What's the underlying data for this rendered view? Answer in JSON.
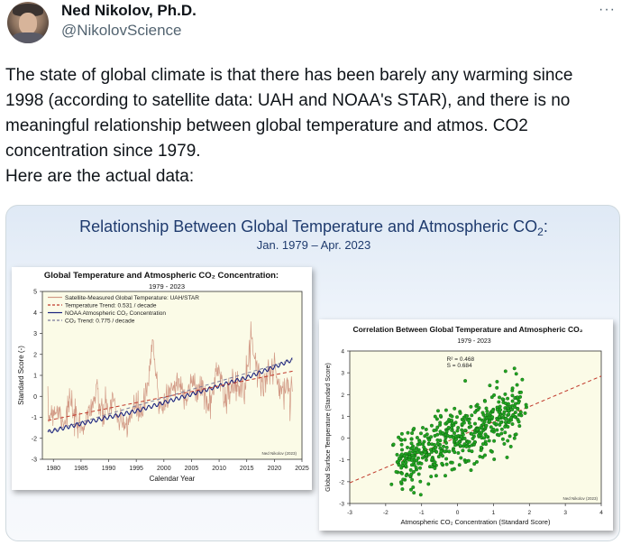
{
  "author": {
    "name": "Ned Nikolov, Ph.D.",
    "handle": "@NikolovScience",
    "more": "···"
  },
  "tweet": {
    "lines": [
      "The state of global climate is that there has been barely any warming since 1998 (according to satellite data: UAH and NOAA's STAR), and there is no meaningful relationship between global temperature and atmos. CO2 concentration since 1979.",
      "Here are the actual data:"
    ]
  },
  "figure": {
    "title_main": "Relationship Between Global Temperature and Atmospheric CO",
    "title_sub2": "2",
    "title_colon": ":",
    "subtitle": "Jan. 1979 – Apr. 2023"
  },
  "chart_data": [
    {
      "type": "line",
      "title": "Global Temperature and Atmospheric CO₂ Concentration:",
      "subtitle": "1979 - 2023",
      "xlabel": "Calendar Year",
      "ylabel": "Standard Score (-)",
      "xlim": [
        1978,
        2025
      ],
      "ylim": [
        -3,
        5
      ],
      "xticks": [
        1980,
        1985,
        1990,
        1995,
        2000,
        2005,
        2010,
        2015,
        2020,
        2025
      ],
      "yticks": [
        -3,
        -2,
        -1,
        0,
        1,
        2,
        3,
        4,
        5
      ],
      "credit": "Ned Nikolov (2023)",
      "grid": false,
      "legend_position": "top-left",
      "legend": [
        {
          "label": "Satellite-Measured Global Temperature: UAH/STAR",
          "color": "#d29a86",
          "style": "solid"
        },
        {
          "label": "Temperature Trend: 0.531 / decade",
          "color": "#c0392b",
          "style": "dashed"
        },
        {
          "label": "NOAA Atmospheric CO₂ Concentration",
          "color": "#1a237e",
          "style": "solid"
        },
        {
          "label": "CO₂ Trend: 0.775 / decade",
          "color": "#7a7a9a",
          "style": "dashed"
        }
      ],
      "temperature_trend": {
        "x": [
          1979,
          2023.3
        ],
        "y": [
          -1.15,
          1.2
        ]
      },
      "co2_trend": {
        "x": [
          1979,
          2023.3
        ],
        "y": [
          -1.7,
          1.75
        ]
      },
      "temperature_anchors": {
        "x": [
          1979,
          1980,
          1981,
          1982,
          1983,
          1984,
          1985,
          1986,
          1987,
          1988,
          1989,
          1990,
          1991,
          1992,
          1993,
          1994,
          1995,
          1996,
          1997,
          1998,
          1999,
          2000,
          2001,
          2002,
          2003,
          2004,
          2005,
          2006,
          2007,
          2008,
          2009,
          2010,
          2011,
          2012,
          2013,
          2014,
          2015,
          2016,
          2017,
          2018,
          2019,
          2020,
          2021,
          2022,
          2023
        ],
        "y": [
          -1.0,
          -0.6,
          -0.7,
          -1.2,
          -0.2,
          -1.3,
          -1.5,
          -1.0,
          -0.3,
          0.0,
          -1.0,
          -0.5,
          -0.2,
          -1.5,
          -1.4,
          -0.9,
          -0.5,
          -0.8,
          0.2,
          2.6,
          -0.2,
          -0.4,
          0.2,
          0.6,
          0.5,
          0.1,
          0.6,
          0.3,
          0.5,
          -0.6,
          0.4,
          1.6,
          -0.1,
          0.3,
          0.5,
          0.6,
          1.2,
          2.8,
          1.2,
          0.5,
          1.2,
          1.4,
          0.3,
          0.2,
          0.5
        ]
      },
      "co2_anchors": {
        "x": [
          1979,
          1985,
          1990,
          1995,
          2000,
          2005,
          2010,
          2015,
          2020,
          2023.3
        ],
        "y": [
          -1.7,
          -1.3,
          -1.0,
          -0.7,
          -0.3,
          0.1,
          0.5,
          0.9,
          1.4,
          1.75
        ]
      }
    },
    {
      "type": "scatter",
      "title": "Correlation Between Global Temperature and Atmospheric CO₂",
      "subtitle": "1979 - 2023",
      "xlabel": "Atmospheric CO₂ Concentration (Standard Score)",
      "ylabel": "Global Surface Temperature (Standard Score)",
      "xlim": [
        -3,
        4
      ],
      "ylim": [
        -3,
        4
      ],
      "xticks": [
        -3,
        -2,
        -1,
        0,
        1,
        2,
        3,
        4
      ],
      "yticks": [
        -3,
        -2,
        -1,
        0,
        1,
        2,
        3,
        4
      ],
      "r2_label": "R² = 0.468",
      "s_label": "S = 0.684",
      "credit": "Ned Nikolov (2023)",
      "point_color": "#21a521",
      "fit_line": {
        "x": [
          -3,
          4
        ],
        "y": [
          -2.05,
          2.85
        ]
      },
      "point_count": 520
    }
  ]
}
